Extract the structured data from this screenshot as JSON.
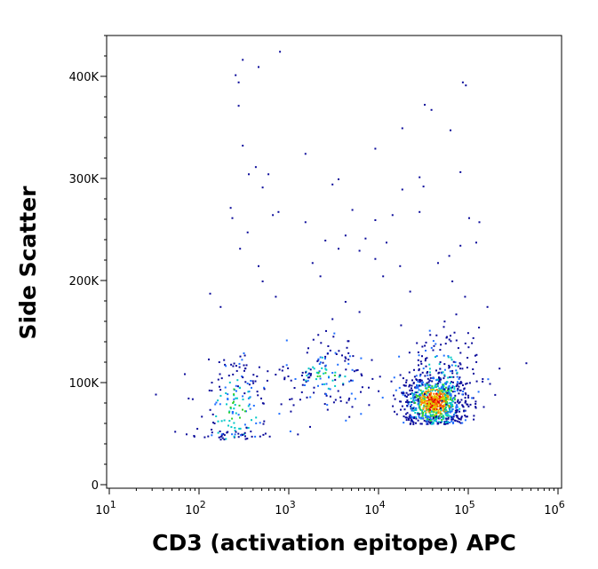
{
  "chart_data": {
    "type": "scatter",
    "style": "flow-cytometry pseudocolor density dot plot",
    "xlabel": "CD3 (activation epitope) APC",
    "ylabel": "Side Scatter",
    "x_scale": "log",
    "xlim": [
      10,
      1000000
    ],
    "ylim": [
      0,
      440000
    ],
    "x_ticks": [
      {
        "value": 10,
        "base": "10",
        "exp": "1"
      },
      {
        "value": 100,
        "base": "10",
        "exp": "2"
      },
      {
        "value": 1000,
        "base": "10",
        "exp": "3"
      },
      {
        "value": 10000,
        "base": "10",
        "exp": "4"
      },
      {
        "value": 100000,
        "base": "10",
        "exp": "5"
      },
      {
        "value": 1000000,
        "base": "10",
        "exp": "6"
      }
    ],
    "y_ticks": [
      {
        "value": 0,
        "label": "0"
      },
      {
        "value": 100000,
        "label": "100K"
      },
      {
        "value": 200000,
        "label": "200K"
      },
      {
        "value": 300000,
        "label": "300K"
      },
      {
        "value": 400000,
        "label": "400K"
      }
    ],
    "grid": false,
    "density_colors": [
      "#0a0a9a",
      "#1f6fff",
      "#00c8c8",
      "#2fd02f",
      "#d8d800",
      "#ff8000",
      "#e00000"
    ],
    "populations": [
      {
        "name": "",
        "n": 190,
        "x_center": 250,
        "x_spread_decades": 0.22,
        "y_center": 75000,
        "y_spread": 30000,
        "y_min": 45000,
        "peak_density": 0.5
      },
      {
        "name": "",
        "n": 160,
        "x_center": 2500,
        "x_spread_decades": 0.22,
        "y_center": 108000,
        "y_spread": 18000,
        "y_min": 45000,
        "peak_density": 0.45
      },
      {
        "name": "",
        "n": 900,
        "x_center": 42000,
        "x_spread_decades": 0.17,
        "y_center": 82000,
        "y_spread": 14000,
        "y_min": 60000,
        "peak_density": 1.0
      },
      {
        "name": "",
        "n": 140,
        "x_center": 50000,
        "x_spread_decades": 0.25,
        "y_center": 115000,
        "y_spread": 22000,
        "y_min": 60000,
        "peak_density": 0.35
      }
    ],
    "sparse_points": [
      [
        450,
        440000
      ],
      [
        780,
        425000
      ],
      [
        300,
        417000
      ],
      [
        450,
        410000
      ],
      [
        250,
        402000
      ],
      [
        270,
        395000
      ],
      [
        85000,
        395000
      ],
      [
        92000,
        392000
      ],
      [
        32000,
        373000
      ],
      [
        38000,
        368000
      ],
      [
        270,
        372000
      ],
      [
        18000,
        350000
      ],
      [
        62000,
        348000
      ],
      [
        300,
        333000
      ],
      [
        9000,
        330000
      ],
      [
        1500,
        325000
      ],
      [
        420,
        312000
      ],
      [
        350,
        305000
      ],
      [
        580,
        305000
      ],
      [
        80000,
        307000
      ],
      [
        3500,
        300000
      ],
      [
        3000,
        295000
      ],
      [
        28000,
        302000
      ],
      [
        31000,
        293000
      ],
      [
        500,
        292000
      ],
      [
        18000,
        290000
      ],
      [
        650,
        265000
      ],
      [
        750,
        268000
      ],
      [
        220,
        272000
      ],
      [
        230,
        262000
      ],
      [
        5000,
        270000
      ],
      [
        14000,
        265000
      ],
      [
        28000,
        268000
      ],
      [
        100000,
        262000
      ],
      [
        130000,
        258000
      ],
      [
        1500,
        258000
      ],
      [
        9000,
        260000
      ],
      [
        120000,
        238000
      ],
      [
        2500,
        240000
      ],
      [
        4200,
        245000
      ],
      [
        7000,
        242000
      ],
      [
        12000,
        238000
      ],
      [
        3500,
        232000
      ],
      [
        6000,
        230000
      ],
      [
        80000,
        235000
      ],
      [
        60000,
        225000
      ],
      [
        45000,
        218000
      ],
      [
        340,
        248000
      ],
      [
        280,
        232000
      ],
      [
        450,
        215000
      ],
      [
        9000,
        222000
      ],
      [
        17000,
        215000
      ],
      [
        11000,
        205000
      ],
      [
        2200,
        205000
      ],
      [
        1800,
        218000
      ],
      [
        500,
        200000
      ],
      [
        65000,
        200000
      ],
      [
        700,
        185000
      ],
      [
        4200,
        180000
      ],
      [
        130,
        188000
      ],
      [
        170,
        175000
      ],
      [
        3000,
        163000
      ],
      [
        6000,
        170000
      ],
      [
        160000,
        175000
      ],
      [
        90000,
        185000
      ],
      [
        22000,
        190000
      ]
    ]
  }
}
